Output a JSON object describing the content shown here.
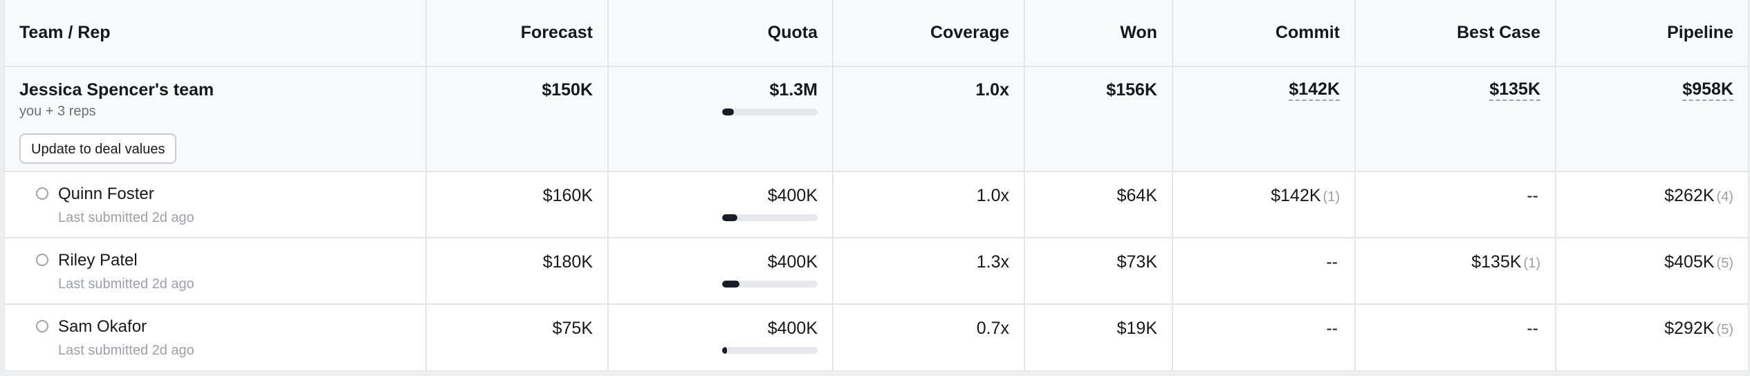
{
  "columns": [
    "Team / Rep",
    "Forecast",
    "Quota",
    "Coverage",
    "Won",
    "Commit",
    "Best Case",
    "Pipeline"
  ],
  "team": {
    "name": "Jessica Spencer's team",
    "subtitle": "you + 3 reps",
    "button_label": "Update to deal values",
    "forecast": "$150K",
    "quota": "$1.3M",
    "quota_attainment": 0.12,
    "coverage": "1.0x",
    "won": "$156K",
    "commit": "$142K",
    "best_case": "$135K",
    "pipeline": "$958K"
  },
  "reps": [
    {
      "name": "Quinn Foster",
      "last_submitted": "Last submitted 2d ago",
      "forecast": "$160K",
      "quota": "$400K",
      "quota_attainment": 0.16,
      "coverage": "1.0x",
      "won": "$64K",
      "commit": "$142K",
      "commit_count": "(1)",
      "best_case": "--",
      "best_case_count": "",
      "pipeline": "$262K",
      "pipeline_count": "(4)"
    },
    {
      "name": "Riley Patel",
      "last_submitted": "Last submitted 2d ago",
      "forecast": "$180K",
      "quota": "$400K",
      "quota_attainment": 0.18,
      "coverage": "1.3x",
      "won": "$73K",
      "commit": "--",
      "commit_count": "",
      "best_case": "$135K",
      "best_case_count": "(1)",
      "pipeline": "$405K",
      "pipeline_count": "(5)"
    },
    {
      "name": "Sam Okafor",
      "last_submitted": "Last submitted 2d ago",
      "forecast": "$75K",
      "quota": "$400K",
      "quota_attainment": 0.05,
      "coverage": "0.7x",
      "won": "$19K",
      "commit": "--",
      "commit_count": "",
      "best_case": "--",
      "best_case_count": "",
      "pipeline": "$292K",
      "pipeline_count": "(5)"
    }
  ],
  "colors": {
    "bar_fill": "#1a1d24",
    "bar_track": "#e6e8ec",
    "header_bg": "#f8f9fa",
    "muted_text": "#9ba0a8"
  }
}
